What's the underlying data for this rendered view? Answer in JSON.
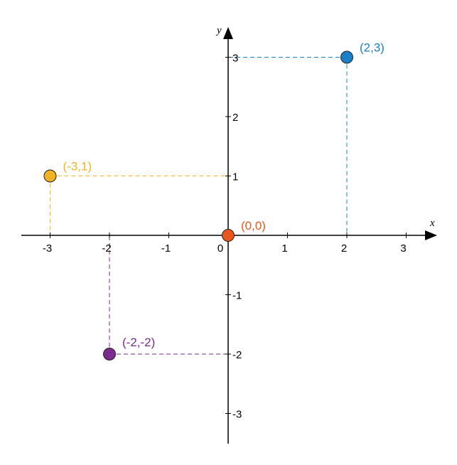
{
  "chart_data": {
    "type": "scatter",
    "xlabel": "x",
    "ylabel": "y",
    "xlim": [
      -3.5,
      3.5
    ],
    "ylim": [
      -3.5,
      3.5
    ],
    "x_ticks": [
      -3,
      -2,
      -1,
      0,
      1,
      2,
      3
    ],
    "y_ticks": [
      -3,
      -2,
      -1,
      1,
      2,
      3
    ],
    "grid": false,
    "points": [
      {
        "x": 2,
        "y": 3,
        "label": "(2,3)",
        "color": "#1a7fc4"
      },
      {
        "x": -3,
        "y": 1,
        "label": "(-3,1)",
        "color": "#f0b323"
      },
      {
        "x": 0,
        "y": 0,
        "label": "(0,0)",
        "color": "#e8581c"
      },
      {
        "x": -2,
        "y": -2,
        "label": "(-2,-2)",
        "color": "#7b2c8f"
      }
    ]
  }
}
